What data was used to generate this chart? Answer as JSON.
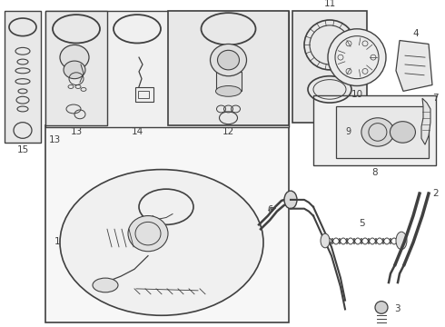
{
  "bg_color": "#ffffff",
  "lc": "#404040",
  "box_bg": "#e8e8e8",
  "tank_bg": "#f2f2f2",
  "large_box_bg": "#f0f0f0"
}
